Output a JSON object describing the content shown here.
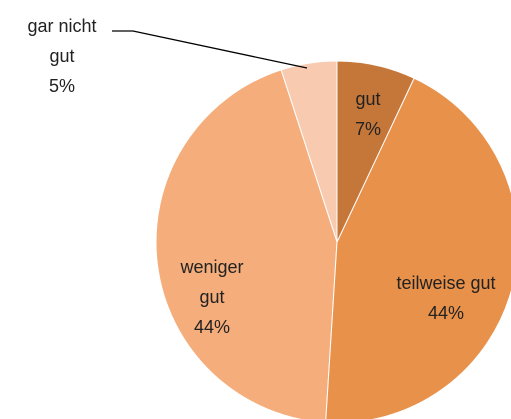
{
  "chart_data": {
    "type": "pie",
    "categories": [
      "gut",
      "teilweise gut",
      "weniger gut",
      "gar nicht gut"
    ],
    "values": [
      7,
      44,
      44,
      5
    ],
    "value_labels": [
      "7%",
      "44%",
      "44%",
      "5%"
    ],
    "colors": [
      "#c5773a",
      "#e8914a",
      "#f4ad7b",
      "#f8cab0"
    ]
  }
}
